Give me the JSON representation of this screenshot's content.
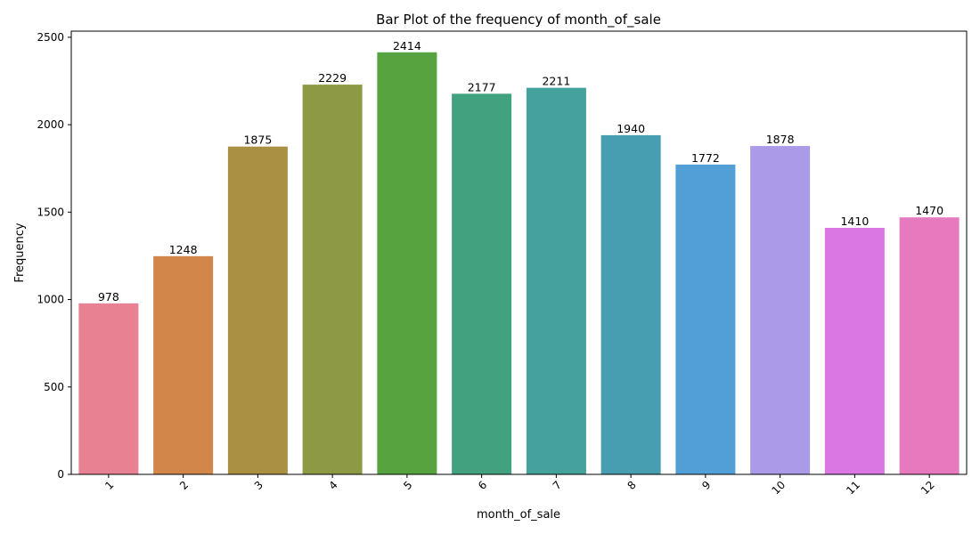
{
  "chart_data": {
    "type": "bar",
    "title": "Bar Plot of the frequency of month_of_sale",
    "xlabel": "month_of_sale",
    "ylabel": "Frequency",
    "categories": [
      "1",
      "2",
      "3",
      "4",
      "5",
      "6",
      "7",
      "8",
      "9",
      "10",
      "11",
      "12"
    ],
    "values": [
      978,
      1248,
      1875,
      2229,
      2414,
      2177,
      2211,
      1940,
      1772,
      1878,
      1410,
      1470
    ],
    "data_labels": [
      "978",
      "1248",
      "1875",
      "2229",
      "2414",
      "2177",
      "2211",
      "1940",
      "1772",
      "1878",
      "1410",
      "1470"
    ],
    "ylim": [
      0,
      2535
    ],
    "yticks": [
      0,
      500,
      1000,
      1500,
      2000,
      2500
    ],
    "ytick_labels": [
      "0",
      "500",
      "1000",
      "1500",
      "2000",
      "2500"
    ],
    "grid": false,
    "legend": "none",
    "x_tick_rotation": 45,
    "colors": [
      "#e88191",
      "#d3864a",
      "#aa9042",
      "#8e9943",
      "#57a340",
      "#42a27f",
      "#45a19c",
      "#489eb1",
      "#529fd6",
      "#ab9ae8",
      "#da78e3",
      "#e77abf"
    ]
  }
}
